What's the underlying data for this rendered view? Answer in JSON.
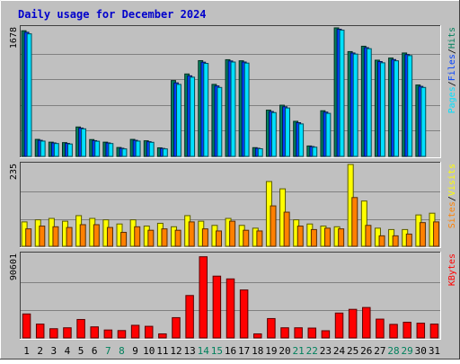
{
  "chart_data": {
    "title": "Daily usage for December 2024",
    "days": [
      "1",
      "2",
      "3",
      "4",
      "5",
      "6",
      "7",
      "8",
      "9",
      "10",
      "11",
      "12",
      "13",
      "14",
      "15",
      "16",
      "17",
      "18",
      "19",
      "20",
      "21",
      "22",
      "23",
      "24",
      "25",
      "26",
      "27",
      "28",
      "29",
      "30",
      "31"
    ],
    "weekend_days": [
      "7",
      "8",
      "14",
      "15",
      "21",
      "22",
      "28",
      "29"
    ],
    "colors": {
      "title": "#0000cc",
      "hits": "#00805c",
      "files": "#0040ff",
      "pages": "#00e0ff",
      "sites": "#ff8000",
      "visits": "#ffff00",
      "kbytes": "#ff0000",
      "weekend_label": "#00805c"
    },
    "panels": [
      {
        "id": "hits-files-pages",
        "type": "bar",
        "axis_label": "1678",
        "ymax": 1678,
        "legend": [
          {
            "text": "Hits",
            "color": "#00805c"
          },
          {
            "text": "/",
            "color": "#000000"
          },
          {
            "text": "Files",
            "color": "#0040ff"
          },
          {
            "text": "/",
            "color": "#000000"
          },
          {
            "text": "Pages",
            "color": "#00e0ff"
          }
        ],
        "series": [
          {
            "name": "Hits",
            "color": "#00805c",
            "values": [
              1640,
              222,
              186,
              180,
              384,
              220,
              186,
              116,
              222,
              204,
              112,
              990,
              1076,
              1250,
              940,
              1262,
              1248,
              114,
              604,
              668,
              458,
              136,
              596,
              1678,
              1368,
              1438,
              1256,
              1284,
              1350,
              932,
              0
            ]
          },
          {
            "name": "Files",
            "color": "#0040ff",
            "values": [
              1620,
              210,
              176,
              170,
              370,
              206,
              176,
              106,
              210,
              192,
              104,
              960,
              1052,
              1230,
              920,
              1246,
              1232,
              106,
              586,
              648,
              440,
              128,
              578,
              1660,
              1350,
              1420,
              1238,
              1264,
              1330,
              914,
              0
            ]
          },
          {
            "name": "Pages",
            "color": "#00e0ff",
            "values": [
              1600,
              200,
              168,
              162,
              360,
              198,
              168,
              98,
              200,
              184,
              98,
              940,
              1034,
              1214,
              900,
              1232,
              1218,
              100,
              572,
              632,
              424,
              120,
              562,
              1648,
              1336,
              1406,
              1222,
              1248,
              1316,
              900,
              0
            ]
          }
        ]
      },
      {
        "id": "visits-sites",
        "type": "bar",
        "axis_label": "235",
        "ymax": 235,
        "legend": [
          {
            "text": "Visits",
            "color": "#ffff00"
          },
          {
            "text": "/",
            "color": "#000000"
          },
          {
            "text": "Sites",
            "color": "#ff8000"
          }
        ],
        "series": [
          {
            "name": "Visits",
            "color": "#ffff00",
            "values": [
              70,
              76,
              80,
              72,
              88,
              80,
              76,
              64,
              76,
              58,
              66,
              56,
              88,
              72,
              60,
              80,
              60,
              52,
              186,
              165,
              76,
              64,
              58,
              56,
              235,
              130,
              52,
              48,
              48,
              90,
              95
            ]
          },
          {
            "name": "Sites",
            "color": "#ff8000",
            "values": [
              50,
              58,
              56,
              54,
              62,
              62,
              54,
              40,
              56,
              46,
              50,
              46,
              70,
              50,
              44,
              72,
              46,
              44,
              116,
              98,
              58,
              48,
              52,
              50,
              140,
              60,
              30,
              30,
              35,
              68,
              70
            ]
          }
        ]
      },
      {
        "id": "kbytes",
        "type": "bar",
        "axis_label": "90601",
        "ymax": 90601,
        "legend": [
          {
            "text": "KBytes",
            "color": "#ff0000"
          }
        ],
        "series": [
          {
            "name": "KBytes",
            "color": "#ff0000",
            "values": [
              26000,
              15000,
              10000,
              11000,
              20000,
              12000,
              8600,
              8000,
              13700,
              12600,
              4400,
              22000,
              46000,
              88000,
              67000,
              64000,
              52000,
              4400,
              21000,
              11000,
              11000,
              10700,
              7800,
              27000,
              31000,
              33000,
              20400,
              14700,
              17000,
              16000,
              15000
            ]
          }
        ]
      }
    ]
  }
}
